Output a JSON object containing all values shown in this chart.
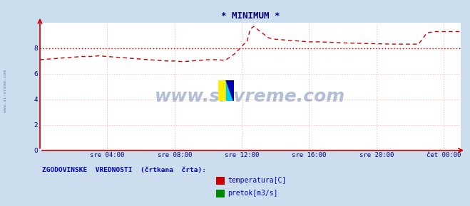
{
  "title": "* MINIMUM *",
  "title_color": "#000080",
  "bg_color": "#ccdded",
  "plot_bg_color": "#ffffff",
  "grid_color": "#ffbbbb",
  "axis_color": "#cc0000",
  "tick_color": "#000080",
  "watermark_text": "www.si-vreme.com",
  "watermark_color": "#4060a0",
  "sidebar_text": "www.si-vreme.com",
  "legend_title": "ZGODOVINSKE  VREDNOSTI  (črtkana  črta):",
  "legend_items": [
    {
      "label": "temperatura[C]",
      "color": "#cc0000"
    },
    {
      "label": "pretok[m3/s]",
      "color": "#008800"
    }
  ],
  "xlim": [
    0,
    25.0
  ],
  "ylim": [
    0,
    10
  ],
  "yticks": [
    0,
    2,
    4,
    6,
    8
  ],
  "xtick_labels": [
    "sre 04:00",
    "sre 08:00",
    "sre 12:00",
    "sre 16:00",
    "sre 20:00",
    "čet 00:00"
  ],
  "xtick_positions": [
    4,
    8,
    12,
    16,
    20,
    24
  ],
  "temp_t": [
    0,
    0.5,
    1,
    1.5,
    2,
    2.5,
    3,
    3.5,
    4,
    4.5,
    5,
    5.5,
    6,
    6.5,
    7,
    7.5,
    8,
    8.5,
    9,
    9.5,
    10,
    10.5,
    11,
    11.3,
    11.6,
    11.9,
    12.1,
    12.3,
    12.5,
    12.7,
    13.0,
    13.3,
    13.6,
    14,
    14.5,
    15,
    15.5,
    16,
    16.5,
    17,
    17.5,
    18,
    18.5,
    19,
    19.5,
    20,
    20.3,
    20.6,
    20.9,
    21.2,
    21.5,
    22,
    22.5,
    23,
    23.5,
    24,
    24.5,
    25
  ],
  "temp_v": [
    7.1,
    7.15,
    7.2,
    7.25,
    7.3,
    7.35,
    7.35,
    7.4,
    7.35,
    7.3,
    7.25,
    7.2,
    7.15,
    7.1,
    7.05,
    7.0,
    7.0,
    6.95,
    7.0,
    7.05,
    7.1,
    7.1,
    7.05,
    7.3,
    7.6,
    8.0,
    8.3,
    8.5,
    9.5,
    9.7,
    9.4,
    9.1,
    8.8,
    8.7,
    8.65,
    8.6,
    8.55,
    8.5,
    8.5,
    8.48,
    8.45,
    8.42,
    8.4,
    8.38,
    8.36,
    8.35,
    8.34,
    8.33,
    8.32,
    8.32,
    8.32,
    8.32,
    8.32,
    9.2,
    9.3,
    9.3,
    9.3,
    9.3
  ],
  "avg_v": 8.0,
  "pretok_v": 0.0,
  "temp_color": "#cc0000",
  "avg_color": "#cc0000",
  "pretok_color": "#008800",
  "logo_left_color": "#ffee00",
  "logo_right_color": "#00ccee",
  "logo_tri_color": "#0000aa"
}
